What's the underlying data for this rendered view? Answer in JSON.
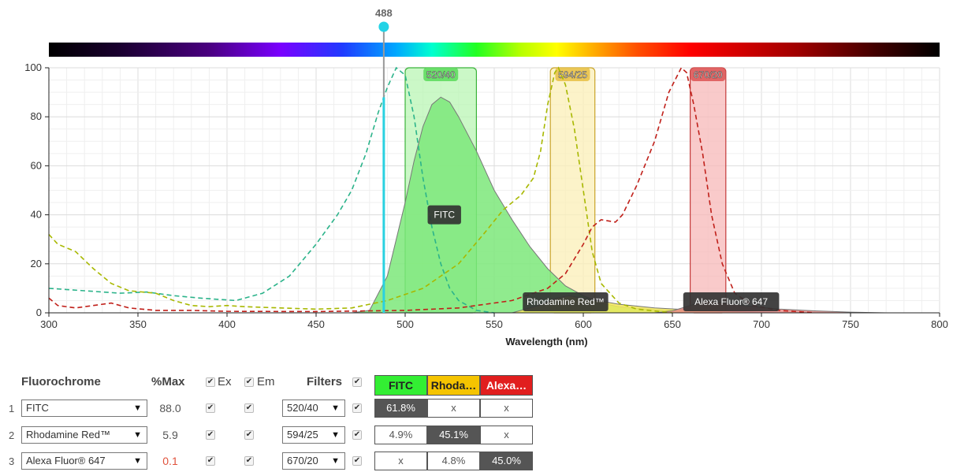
{
  "laser": {
    "label": "488",
    "nm": 488
  },
  "chart_data": {
    "type": "line",
    "xlabel": "Wavelength (nm)",
    "ylabel": "",
    "xlim": [
      300,
      800
    ],
    "ylim": [
      0,
      100
    ],
    "xticks": [
      "300",
      "350",
      "400",
      "450",
      "500",
      "550",
      "600",
      "650",
      "700",
      "750",
      "800"
    ],
    "yticks": [
      "0",
      "20",
      "40",
      "60",
      "80",
      "100"
    ],
    "grid": true,
    "filters": [
      {
        "label": "520/40",
        "center": 520,
        "width": 40,
        "fill": "#b9f5b4",
        "stroke": "#3bb33b",
        "head": "#5fdc5f"
      },
      {
        "label": "594/25",
        "center": 594,
        "width": 25,
        "fill": "#fbefb7",
        "stroke": "#c9a42a",
        "head": "#e8c24a"
      },
      {
        "label": "670/20",
        "center": 670,
        "width": 20,
        "fill": "#f7b8b8",
        "stroke": "#c43b3b",
        "head": "#de5a5a"
      }
    ],
    "series": [
      {
        "name": "FITC",
        "kind": "excitation",
        "color": "#2bb38a",
        "points": [
          [
            300,
            10
          ],
          [
            320,
            9
          ],
          [
            340,
            8
          ],
          [
            355,
            8.5
          ],
          [
            370,
            7
          ],
          [
            385,
            6
          ],
          [
            395,
            5.5
          ],
          [
            405,
            5
          ],
          [
            420,
            8
          ],
          [
            435,
            15
          ],
          [
            450,
            28
          ],
          [
            462,
            40
          ],
          [
            470,
            50
          ],
          [
            478,
            65
          ],
          [
            485,
            82
          ],
          [
            490,
            92
          ],
          [
            495,
            100
          ],
          [
            500,
            97
          ],
          [
            505,
            80
          ],
          [
            510,
            55
          ],
          [
            515,
            35
          ],
          [
            520,
            20
          ],
          [
            525,
            10
          ],
          [
            530,
            5
          ],
          [
            540,
            1
          ],
          [
            550,
            0
          ]
        ]
      },
      {
        "name": "FITC",
        "kind": "emission",
        "color": "#3fb83f",
        "fill": "#7de87a",
        "points": [
          [
            470,
            0
          ],
          [
            480,
            1
          ],
          [
            490,
            15
          ],
          [
            500,
            45
          ],
          [
            505,
            62
          ],
          [
            510,
            76
          ],
          [
            515,
            85
          ],
          [
            520,
            88
          ],
          [
            525,
            86
          ],
          [
            530,
            80
          ],
          [
            540,
            66
          ],
          [
            550,
            50
          ],
          [
            560,
            38
          ],
          [
            570,
            27
          ],
          [
            580,
            18
          ],
          [
            590,
            11
          ],
          [
            600,
            7
          ],
          [
            610,
            4
          ],
          [
            620,
            2.5
          ],
          [
            640,
            1.2
          ],
          [
            660,
            0.6
          ],
          [
            680,
            0.2
          ],
          [
            690,
            0
          ]
        ]
      },
      {
        "name": "Rhodamine Red™",
        "kind": "excitation",
        "color": "#a8b800",
        "points": [
          [
            300,
            32
          ],
          [
            305,
            28
          ],
          [
            315,
            25
          ],
          [
            325,
            18
          ],
          [
            335,
            12
          ],
          [
            345,
            9
          ],
          [
            360,
            8
          ],
          [
            370,
            5
          ],
          [
            380,
            3
          ],
          [
            390,
            2.5
          ],
          [
            400,
            3
          ],
          [
            410,
            2.5
          ],
          [
            430,
            2
          ],
          [
            450,
            1.5
          ],
          [
            470,
            2
          ],
          [
            490,
            5
          ],
          [
            510,
            10
          ],
          [
            530,
            20
          ],
          [
            545,
            33
          ],
          [
            555,
            42
          ],
          [
            565,
            48
          ],
          [
            572,
            55
          ],
          [
            576,
            66
          ],
          [
            580,
            85
          ],
          [
            584,
            98
          ],
          [
            586,
            100
          ],
          [
            590,
            93
          ],
          [
            595,
            75
          ],
          [
            600,
            50
          ],
          [
            605,
            25
          ],
          [
            610,
            12
          ],
          [
            620,
            4
          ],
          [
            630,
            1.5
          ],
          [
            650,
            0
          ]
        ]
      },
      {
        "name": "Rhodamine Red™",
        "kind": "emission",
        "color": "#d3c000",
        "fill": "#f3e95a",
        "points": [
          [
            560,
            0
          ],
          [
            575,
            3
          ],
          [
            585,
            6
          ],
          [
            592,
            7
          ],
          [
            600,
            5.9
          ],
          [
            610,
            4.8
          ],
          [
            620,
            3.5
          ],
          [
            640,
            2
          ],
          [
            660,
            1.2
          ],
          [
            680,
            0.6
          ],
          [
            700,
            0.2
          ],
          [
            710,
            0
          ]
        ]
      },
      {
        "name": "Alexa Fluor® 647",
        "kind": "excitation",
        "color": "#c0201a",
        "points": [
          [
            300,
            6
          ],
          [
            305,
            3
          ],
          [
            315,
            2
          ],
          [
            325,
            3
          ],
          [
            335,
            4
          ],
          [
            345,
            2
          ],
          [
            360,
            1
          ],
          [
            380,
            1
          ],
          [
            400,
            0.6
          ],
          [
            450,
            0.5
          ],
          [
            500,
            1
          ],
          [
            530,
            2
          ],
          [
            560,
            5
          ],
          [
            580,
            10
          ],
          [
            590,
            16
          ],
          [
            600,
            28
          ],
          [
            605,
            35
          ],
          [
            610,
            38
          ],
          [
            618,
            37
          ],
          [
            622,
            40
          ],
          [
            630,
            52
          ],
          [
            640,
            70
          ],
          [
            648,
            90
          ],
          [
            655,
            100
          ],
          [
            658,
            98
          ],
          [
            662,
            85
          ],
          [
            667,
            65
          ],
          [
            672,
            40
          ],
          [
            678,
            20
          ],
          [
            685,
            8
          ],
          [
            695,
            3
          ],
          [
            710,
            1
          ],
          [
            730,
            0
          ]
        ]
      },
      {
        "name": "Alexa Fluor® 647",
        "kind": "emission",
        "color": "#d8524c",
        "fill": "#e98d88",
        "points": [
          [
            640,
            0
          ],
          [
            650,
            0.8
          ],
          [
            660,
            3
          ],
          [
            668,
            5
          ],
          [
            675,
            4.5
          ],
          [
            690,
            3
          ],
          [
            710,
            1.5
          ],
          [
            730,
            0.8
          ],
          [
            750,
            0.3
          ],
          [
            770,
            0
          ]
        ]
      }
    ],
    "labels": [
      {
        "text": "FITC",
        "x": 522,
        "y": 40
      },
      {
        "text": "Rhodamine Red™",
        "x": 590,
        "y": 4.5
      },
      {
        "text": "Alexa Fluor® 647",
        "x": 683,
        "y": 4.5
      }
    ]
  },
  "table": {
    "headers": {
      "fluorochrome": "Fluorochrome",
      "max": "%Max",
      "ex": "Ex",
      "em": "Em",
      "filters": "Filters"
    },
    "filter_columns": [
      {
        "label": "FITC",
        "bg": "#33ee33",
        "fg": "#222222"
      },
      {
        "label": "Rhoda…",
        "bg": "#f5c400",
        "fg": "#222222"
      },
      {
        "label": "Alexa…",
        "bg": "#e11e1e",
        "fg": "#ffffff"
      }
    ],
    "rows": [
      {
        "num": "1",
        "fluor": "FITC",
        "max": "88.0",
        "filter": "520/40",
        "cells": [
          "61.8%",
          "x",
          "x"
        ],
        "filled": [
          true,
          false,
          false
        ]
      },
      {
        "num": "2",
        "fluor": "Rhodamine Red™",
        "max": "5.9",
        "filter": "594/25",
        "cells": [
          "4.9%",
          "45.1%",
          "x"
        ],
        "filled": [
          false,
          true,
          false
        ]
      },
      {
        "num": "3",
        "fluor": "Alexa Fluor® 647",
        "max": "0.1",
        "filter": "670/20",
        "cells": [
          "x",
          "4.8%",
          "45.0%"
        ],
        "filled": [
          false,
          false,
          true
        ]
      }
    ]
  }
}
